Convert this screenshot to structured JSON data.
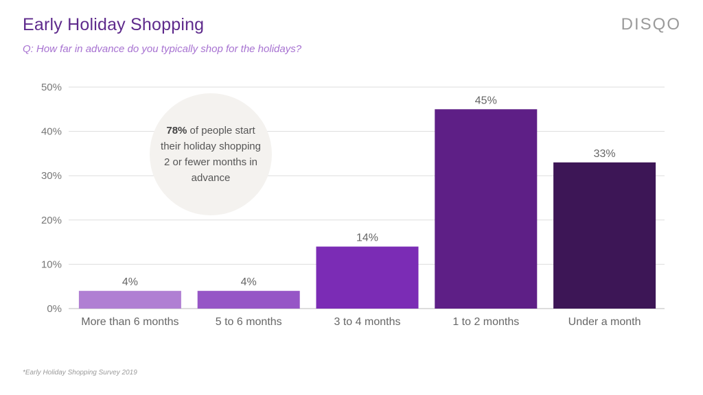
{
  "header": {
    "title": "Early Holiday Shopping",
    "subtitle": "Q: How far in advance do you typically shop for the holidays?",
    "brand": "DISQO"
  },
  "callout": {
    "highlight": "78%",
    "text": " of people start their holiday shopping 2 or fewer months in advance"
  },
  "footnote": "*Early Holiday Shopping Survey 2019",
  "colors": {
    "bars": [
      "#b07fd3",
      "#9656c6",
      "#7b2cb5",
      "#5e1f86",
      "#3d1656"
    ],
    "grid": "#dddddd",
    "tick_text": "#777777",
    "label_text": "#666666"
  },
  "chart_data": {
    "type": "bar",
    "categories": [
      "More than 6 months",
      "5 to 6 months",
      "3 to 4 months",
      "1 to 2 months",
      "Under a month"
    ],
    "values": [
      4,
      4,
      14,
      45,
      33
    ],
    "data_labels": [
      "4%",
      "4%",
      "14%",
      "45%",
      "33%"
    ],
    "yticks": [
      "0%",
      "10%",
      "20%",
      "30%",
      "40%",
      "50%"
    ],
    "ylim": [
      0,
      50
    ],
    "grid": true
  }
}
